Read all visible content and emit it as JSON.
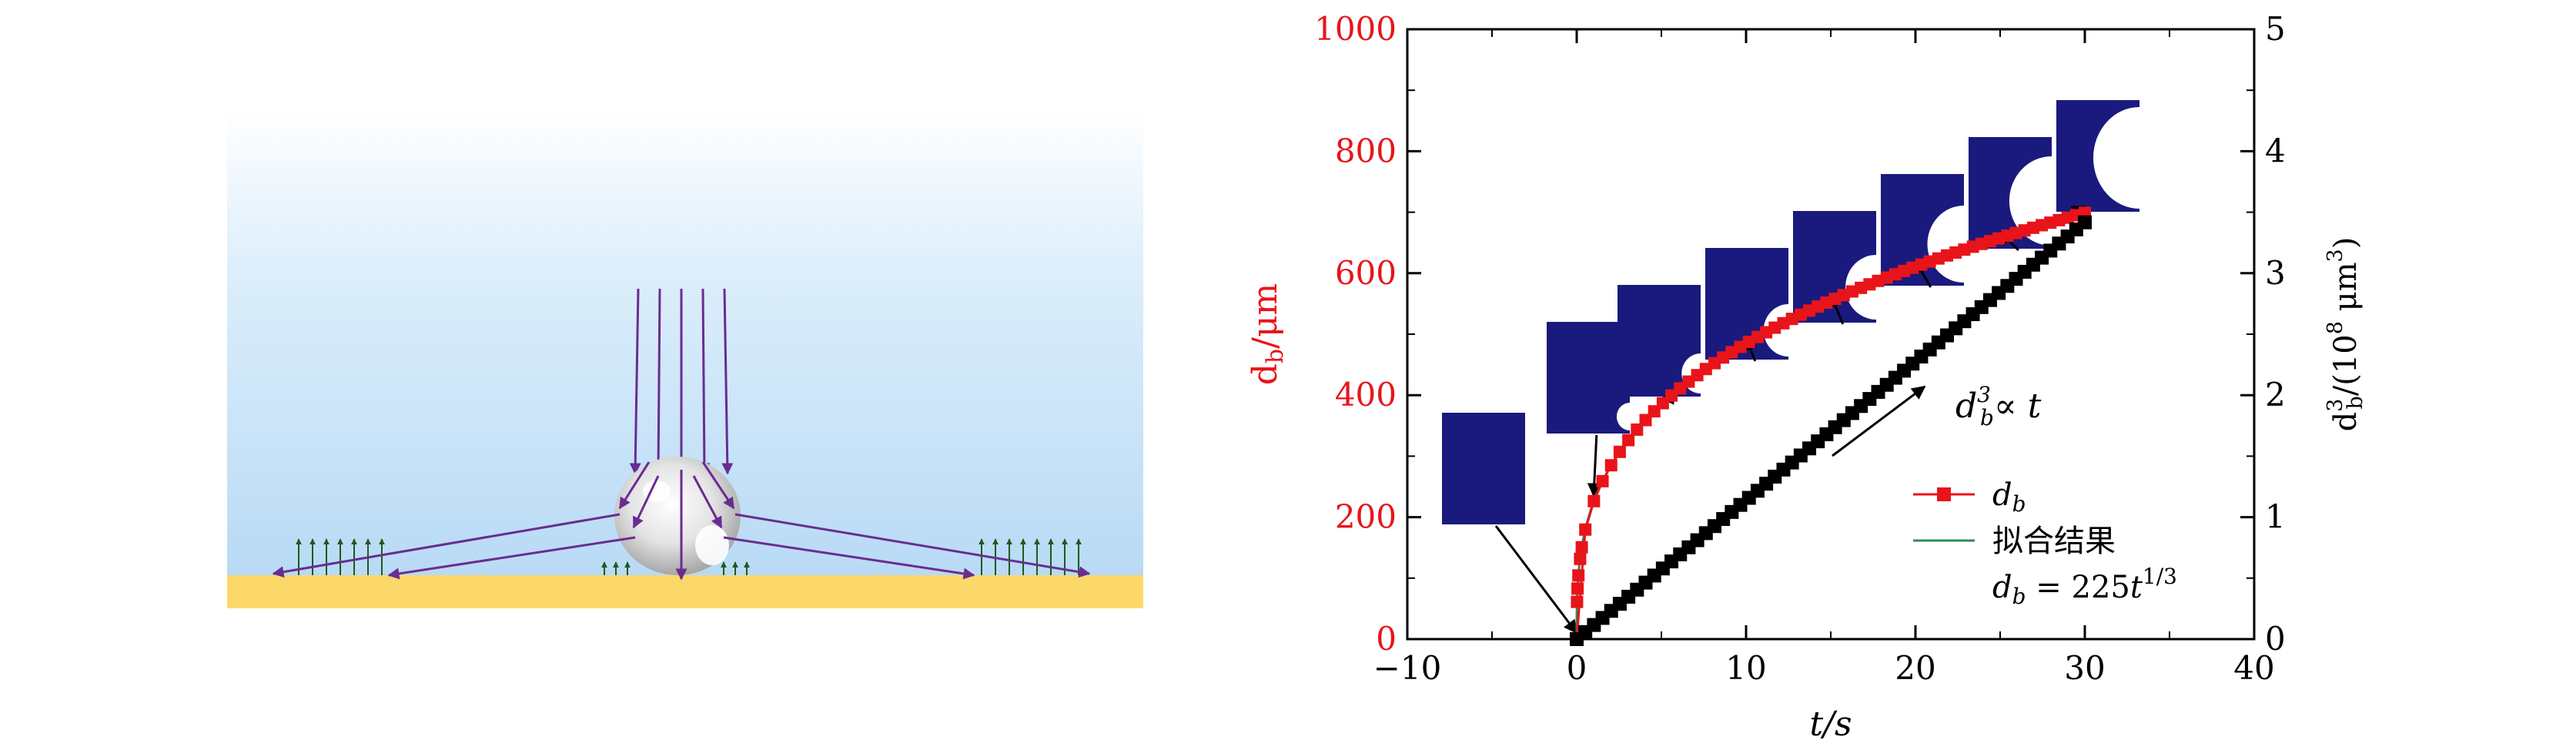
{
  "chart_data": {
    "type": "line",
    "xlabel": "t/s",
    "ylabel_left": "d_b/μm",
    "ylabel_right": "d_b^3/(10^8 μm^3)",
    "xlim": [
      -10,
      40
    ],
    "ylim_left": [
      0,
      1000
    ],
    "ylim_right": [
      0,
      5
    ],
    "x_ticks": [
      "−10",
      "0",
      "10",
      "20",
      "30",
      "40"
    ],
    "y_left_ticks": [
      "0",
      "200",
      "400",
      "600",
      "800",
      "1000"
    ],
    "y_right_ticks": [
      "0",
      "1",
      "2",
      "3",
      "4",
      "5"
    ],
    "colors": {
      "db": "#e8141a",
      "fit": "#2e8b57",
      "cube": "#000000",
      "ylabel_left": "#e8141a",
      "inset": "#1a1a7e"
    },
    "series": [
      {
        "name": "d_b",
        "axis": "left",
        "marker": "square",
        "fit_coefficient": 225,
        "fit_exponent": 0.3333,
        "t_start": 0,
        "t_end": 30,
        "points": 60
      },
      {
        "name": "拟合结果",
        "axis": "left",
        "line_only": true
      },
      {
        "name": "",
        "axis": "right",
        "marker": "square",
        "y_per_second": 0.1139,
        "t_start": 0,
        "t_end": 30,
        "points": 60
      }
    ],
    "legend": {
      "position": "bottom-right",
      "entries": [
        "d_b",
        "拟合结果",
        "d_b = 225t^{1/3}"
      ]
    },
    "annotations": {
      "cube_prop": "d_b^3∝ t"
    },
    "inset_times": [
      -5,
      1,
      5,
      10,
      15,
      20,
      25,
      30
    ]
  }
}
